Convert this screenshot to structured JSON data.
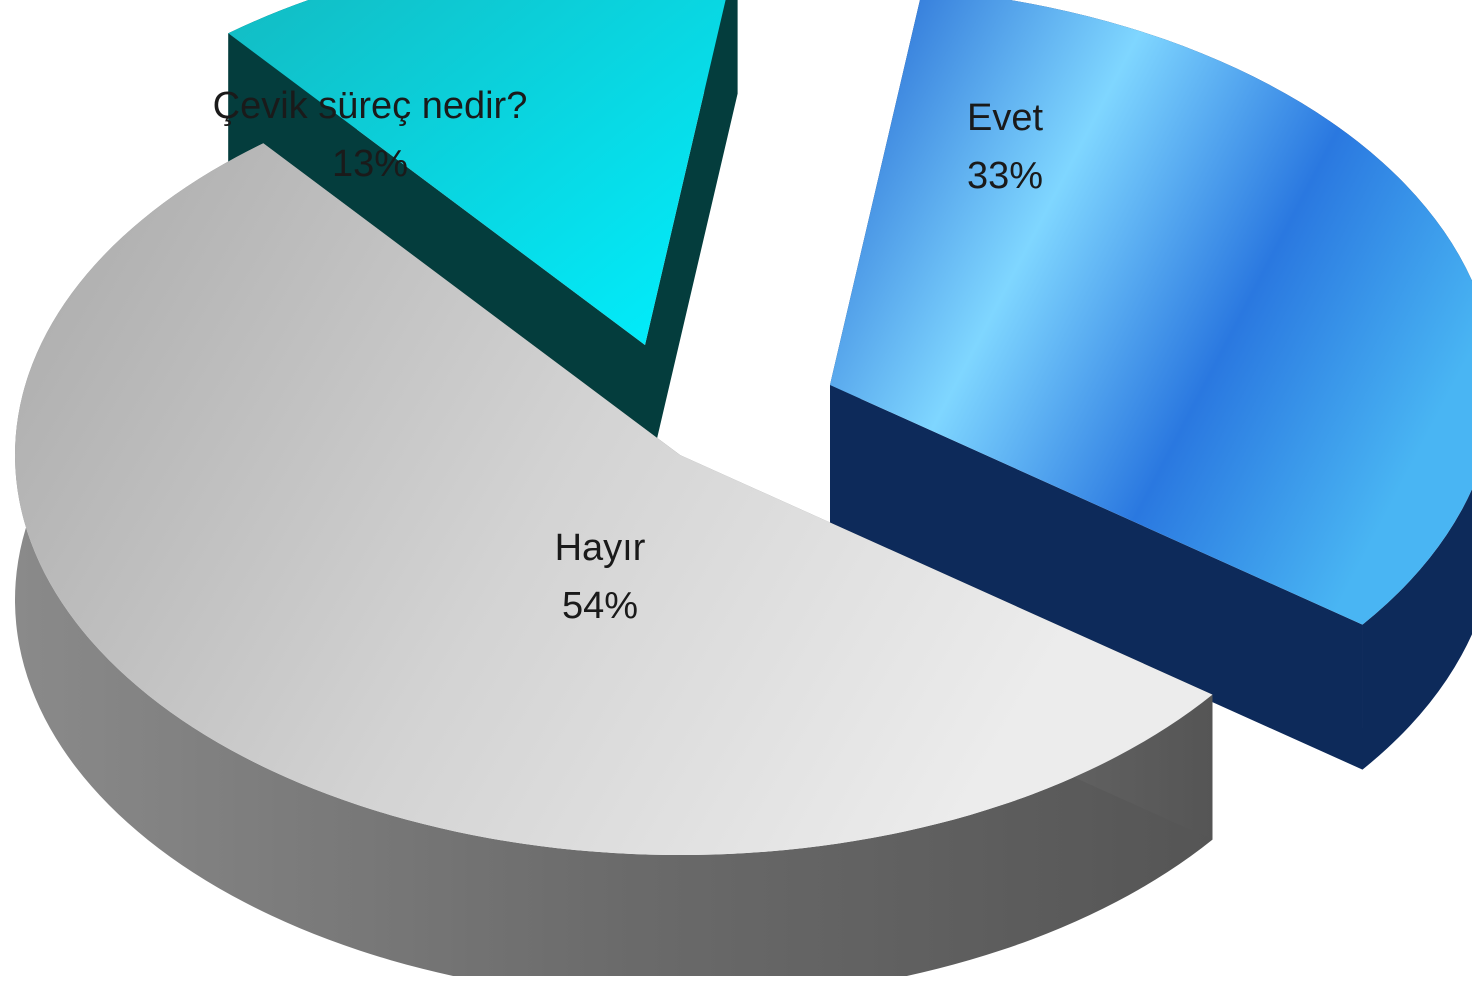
{
  "chart_data": {
    "type": "pie",
    "style": "3d-exploded",
    "legend": "none",
    "slices": [
      {
        "label": "Evet",
        "value": 33,
        "value_label": "33%",
        "color": "#2e7fe0"
      },
      {
        "label": "Hayır",
        "value": 54,
        "value_label": "54%",
        "color": "#c8c8c8"
      },
      {
        "label": "Çevik süreç nedir?",
        "value": 13,
        "value_label": "13%",
        "color": "#19dde6"
      }
    ]
  }
}
